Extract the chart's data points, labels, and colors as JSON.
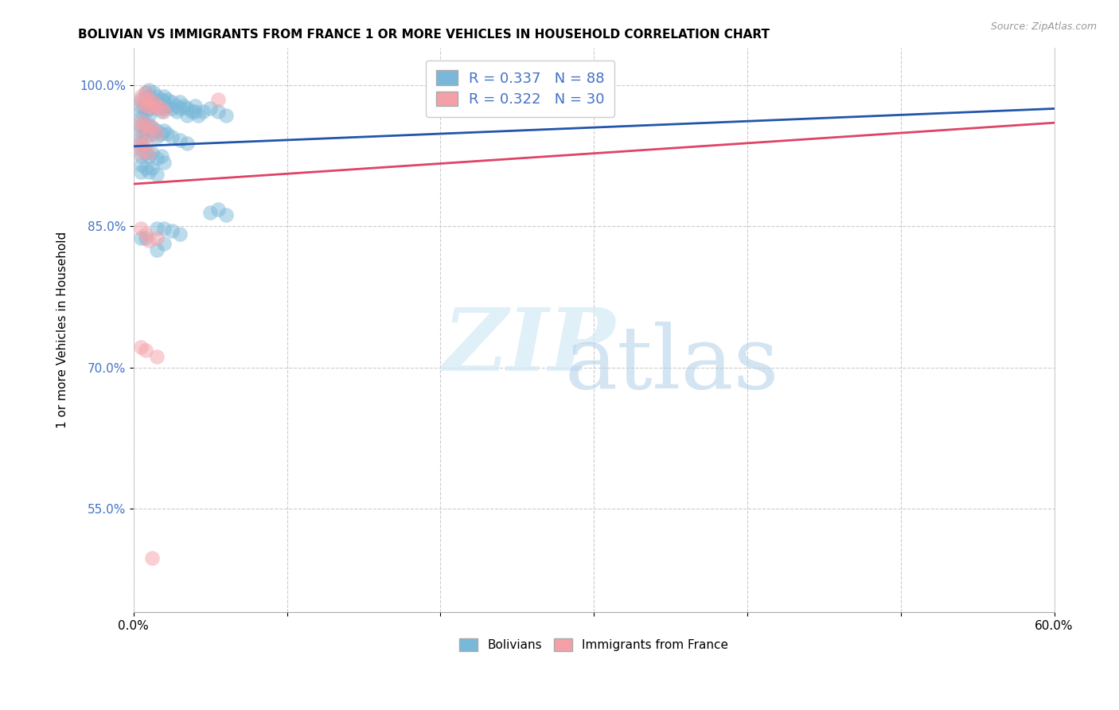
{
  "title": "BOLIVIAN VS IMMIGRANTS FROM FRANCE 1 OR MORE VEHICLES IN HOUSEHOLD CORRELATION CHART",
  "source": "Source: ZipAtlas.com",
  "ylabel": "1 or more Vehicles in Household",
  "ytick_values": [
    1.0,
    0.85,
    0.7,
    0.55
  ],
  "xlim": [
    0.0,
    0.6
  ],
  "ylim": [
    0.44,
    1.04
  ],
  "blue_color": "#7ab8d9",
  "pink_color": "#f4a0a8",
  "blue_line_color": "#2255aa",
  "pink_line_color": "#dd4466",
  "legend_text_color": "#4472c4",
  "bolivians_label": "Bolivians",
  "france_label": "Immigrants from France",
  "blue_scatter": [
    [
      0.005,
      0.985
    ],
    [
      0.005,
      0.978
    ],
    [
      0.005,
      0.972
    ],
    [
      0.005,
      0.965
    ],
    [
      0.008,
      0.992
    ],
    [
      0.008,
      0.985
    ],
    [
      0.008,
      0.978
    ],
    [
      0.008,
      0.972
    ],
    [
      0.01,
      0.995
    ],
    [
      0.01,
      0.988
    ],
    [
      0.01,
      0.982
    ],
    [
      0.01,
      0.975
    ],
    [
      0.01,
      0.968
    ],
    [
      0.013,
      0.992
    ],
    [
      0.013,
      0.985
    ],
    [
      0.013,
      0.978
    ],
    [
      0.015,
      0.988
    ],
    [
      0.015,
      0.982
    ],
    [
      0.015,
      0.975
    ],
    [
      0.018,
      0.985
    ],
    [
      0.018,
      0.978
    ],
    [
      0.018,
      0.972
    ],
    [
      0.02,
      0.988
    ],
    [
      0.02,
      0.982
    ],
    [
      0.02,
      0.975
    ],
    [
      0.022,
      0.985
    ],
    [
      0.022,
      0.978
    ],
    [
      0.025,
      0.982
    ],
    [
      0.025,
      0.975
    ],
    [
      0.028,
      0.978
    ],
    [
      0.028,
      0.972
    ],
    [
      0.03,
      0.982
    ],
    [
      0.03,
      0.975
    ],
    [
      0.033,
      0.978
    ],
    [
      0.035,
      0.975
    ],
    [
      0.035,
      0.968
    ],
    [
      0.038,
      0.972
    ],
    [
      0.04,
      0.978
    ],
    [
      0.04,
      0.972
    ],
    [
      0.042,
      0.968
    ],
    [
      0.045,
      0.972
    ],
    [
      0.05,
      0.975
    ],
    [
      0.055,
      0.972
    ],
    [
      0.06,
      0.968
    ],
    [
      0.005,
      0.958
    ],
    [
      0.005,
      0.952
    ],
    [
      0.005,
      0.945
    ],
    [
      0.005,
      0.938
    ],
    [
      0.008,
      0.958
    ],
    [
      0.008,
      0.952
    ],
    [
      0.008,
      0.945
    ],
    [
      0.01,
      0.958
    ],
    [
      0.01,
      0.952
    ],
    [
      0.012,
      0.955
    ],
    [
      0.012,
      0.948
    ],
    [
      0.015,
      0.952
    ],
    [
      0.015,
      0.945
    ],
    [
      0.018,
      0.948
    ],
    [
      0.02,
      0.952
    ],
    [
      0.022,
      0.948
    ],
    [
      0.025,
      0.945
    ],
    [
      0.03,
      0.942
    ],
    [
      0.035,
      0.938
    ],
    [
      0.005,
      0.932
    ],
    [
      0.005,
      0.925
    ],
    [
      0.008,
      0.928
    ],
    [
      0.01,
      0.925
    ],
    [
      0.012,
      0.928
    ],
    [
      0.015,
      0.922
    ],
    [
      0.018,
      0.925
    ],
    [
      0.02,
      0.918
    ],
    [
      0.005,
      0.915
    ],
    [
      0.005,
      0.908
    ],
    [
      0.008,
      0.912
    ],
    [
      0.01,
      0.908
    ],
    [
      0.012,
      0.912
    ],
    [
      0.015,
      0.905
    ],
    [
      0.05,
      0.865
    ],
    [
      0.055,
      0.868
    ],
    [
      0.06,
      0.862
    ],
    [
      0.015,
      0.848
    ],
    [
      0.02,
      0.848
    ],
    [
      0.025,
      0.845
    ],
    [
      0.03,
      0.842
    ],
    [
      0.005,
      0.838
    ],
    [
      0.008,
      0.838
    ],
    [
      0.02,
      0.832
    ],
    [
      0.015,
      0.825
    ]
  ],
  "pink_scatter": [
    [
      0.005,
      0.988
    ],
    [
      0.005,
      0.982
    ],
    [
      0.008,
      0.992
    ],
    [
      0.008,
      0.985
    ],
    [
      0.008,
      0.978
    ],
    [
      0.01,
      0.985
    ],
    [
      0.01,
      0.978
    ],
    [
      0.013,
      0.982
    ],
    [
      0.013,
      0.975
    ],
    [
      0.015,
      0.978
    ],
    [
      0.018,
      0.975
    ],
    [
      0.02,
      0.972
    ],
    [
      0.005,
      0.962
    ],
    [
      0.005,
      0.955
    ],
    [
      0.008,
      0.958
    ],
    [
      0.01,
      0.952
    ],
    [
      0.012,
      0.955
    ],
    [
      0.015,
      0.948
    ],
    [
      0.005,
      0.942
    ],
    [
      0.005,
      0.935
    ],
    [
      0.005,
      0.928
    ],
    [
      0.008,
      0.938
    ],
    [
      0.01,
      0.928
    ],
    [
      0.005,
      0.848
    ],
    [
      0.008,
      0.842
    ],
    [
      0.01,
      0.835
    ],
    [
      0.015,
      0.838
    ],
    [
      0.005,
      0.722
    ],
    [
      0.008,
      0.718
    ],
    [
      0.015,
      0.712
    ],
    [
      0.055,
      0.985
    ],
    [
      0.012,
      0.498
    ]
  ],
  "blue_trendline_x": [
    0.0,
    0.6
  ],
  "blue_trendline_y": [
    0.935,
    0.975
  ],
  "pink_trendline_x": [
    0.0,
    0.6
  ],
  "pink_trendline_y": [
    0.895,
    0.96
  ]
}
